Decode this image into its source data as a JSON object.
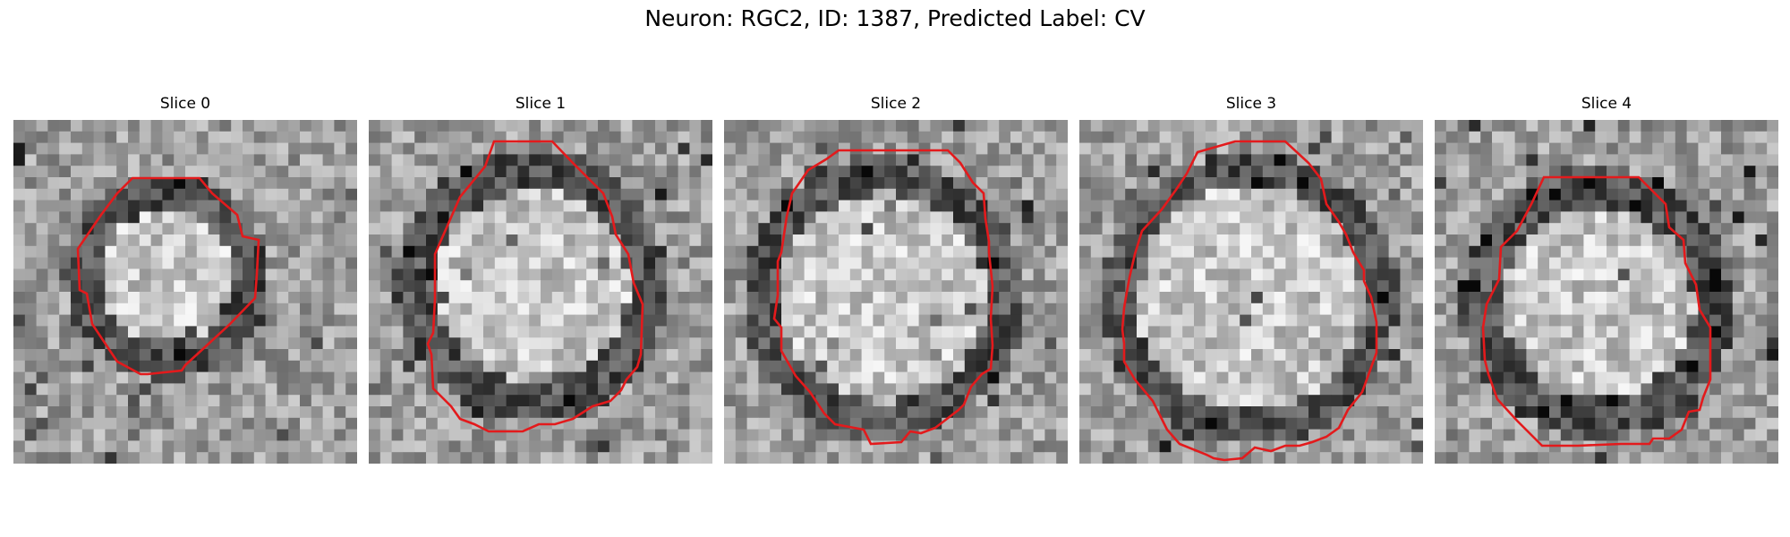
{
  "figure": {
    "title": "Neuron: RGC2, ID: 1387, Predicted Label: CV",
    "outline_color": "#e31a1c",
    "colormap": "gray",
    "panels": [
      {
        "title": "Slice 0"
      },
      {
        "title": "Slice 1"
      },
      {
        "title": "Slice 2"
      },
      {
        "title": "Slice 3"
      },
      {
        "title": "Slice 4"
      }
    ]
  }
}
